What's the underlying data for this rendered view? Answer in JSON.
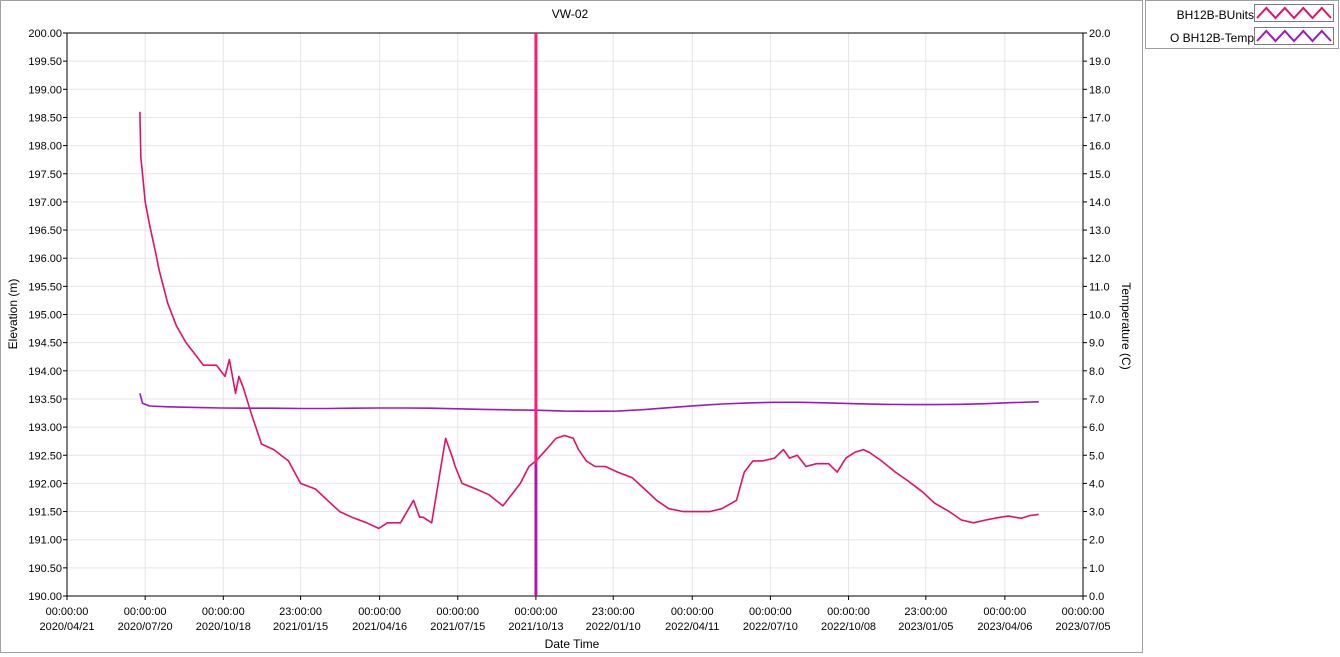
{
  "chart_data": {
    "type": "line",
    "title": "VW-02",
    "xlabel": "Date Time",
    "ylabel": "Elevation (m)",
    "y2label": "Temperature (C)",
    "xlim": [
      "2020-04-21",
      "2023-07-05"
    ],
    "ylim": [
      190.0,
      200.0
    ],
    "y2lim": [
      0.0,
      20.0
    ],
    "grid": true,
    "legend_position": "top-right, outside plot",
    "x_ticks": [
      {
        "date": "2020-04-21",
        "time": "00:00:00",
        "label": "2020/04/21"
      },
      {
        "date": "2020-07-20",
        "time": "00:00:00",
        "label": "2020/07/20"
      },
      {
        "date": "2020-10-18",
        "time": "00:00:00",
        "label": "2020/10/18"
      },
      {
        "date": "2021-01-15",
        "time": "23:00:00",
        "label": "2021/01/15"
      },
      {
        "date": "2021-04-16",
        "time": "00:00:00",
        "label": "2021/04/16"
      },
      {
        "date": "2021-07-15",
        "time": "00:00:00",
        "label": "2021/07/15"
      },
      {
        "date": "2021-10-13",
        "time": "00:00:00",
        "label": "2021/10/13"
      },
      {
        "date": "2022-01-10",
        "time": "23:00:00",
        "label": "2022/01/10"
      },
      {
        "date": "2022-04-11",
        "time": "00:00:00",
        "label": "2022/04/11"
      },
      {
        "date": "2022-07-10",
        "time": "00:00:00",
        "label": "2022/07/10"
      },
      {
        "date": "2022-10-08",
        "time": "00:00:00",
        "label": "2022/10/08"
      },
      {
        "date": "2023-01-05",
        "time": "23:00:00",
        "label": "2023/01/05"
      },
      {
        "date": "2023-04-06",
        "time": "00:00:00",
        "label": "2023/04/06"
      },
      {
        "date": "2023-07-05",
        "time": "00:00:00",
        "label": "2023/07/05"
      }
    ],
    "y_ticks": [
      "190.00",
      "190.50",
      "191.00",
      "191.50",
      "192.00",
      "192.50",
      "193.00",
      "193.50",
      "194.00",
      "194.50",
      "195.00",
      "195.50",
      "196.00",
      "196.50",
      "197.00",
      "197.50",
      "198.00",
      "198.50",
      "199.00",
      "199.50",
      "200.00"
    ],
    "y2_ticks": [
      "0.0",
      "1.0",
      "2.0",
      "3.0",
      "4.0",
      "5.0",
      "6.0",
      "7.0",
      "8.0",
      "9.0",
      "10.0",
      "11.0",
      "12.0",
      "13.0",
      "14.0",
      "15.0",
      "16.0",
      "17.0",
      "18.0",
      "19.0",
      "20.0"
    ],
    "cursor": {
      "x": "2021-10-13",
      "color": "#ff1a75"
    },
    "series": [
      {
        "name": "BH12B-BUnits",
        "legend_label": "BH12B-BUnits",
        "axis": "left",
        "color": "#e0116a",
        "x": [
          "2020-07-14",
          "2020-07-15",
          "2020-07-17",
          "2020-07-20",
          "2020-07-25",
          "2020-08-01",
          "2020-08-05",
          "2020-08-15",
          "2020-08-25",
          "2020-09-05",
          "2020-09-15",
          "2020-09-25",
          "2020-10-10",
          "2020-10-20",
          "2020-10-25",
          "2020-11-01",
          "2020-11-05",
          "2020-11-10",
          "2020-11-20",
          "2020-12-01",
          "2020-12-15",
          "2021-01-01",
          "2021-01-15",
          "2021-02-01",
          "2021-02-15",
          "2021-03-01",
          "2021-03-15",
          "2021-04-01",
          "2021-04-15",
          "2021-04-25",
          "2021-05-10",
          "2021-05-25",
          "2021-06-01",
          "2021-06-05",
          "2021-06-15",
          "2021-07-01",
          "2021-07-08",
          "2021-07-12",
          "2021-07-20",
          "2021-08-05",
          "2021-08-20",
          "2021-09-05",
          "2021-09-15",
          "2021-09-25",
          "2021-10-05",
          "2021-10-13",
          "2021-10-25",
          "2021-11-05",
          "2021-11-15",
          "2021-11-25",
          "2021-12-01",
          "2021-12-10",
          "2021-12-20",
          "2022-01-01",
          "2022-01-15",
          "2022-02-01",
          "2022-02-15",
          "2022-03-01",
          "2022-03-15",
          "2022-04-01",
          "2022-04-15",
          "2022-05-01",
          "2022-05-15",
          "2022-06-01",
          "2022-06-10",
          "2022-06-20",
          "2022-07-01",
          "2022-07-15",
          "2022-07-25",
          "2022-08-01",
          "2022-08-10",
          "2022-08-20",
          "2022-09-01",
          "2022-09-15",
          "2022-09-25",
          "2022-10-05",
          "2022-10-15",
          "2022-10-25",
          "2022-11-01",
          "2022-11-15",
          "2022-12-01",
          "2022-12-15",
          "2023-01-01",
          "2023-01-15",
          "2023-02-01",
          "2023-02-15",
          "2023-03-01",
          "2023-03-15",
          "2023-04-01",
          "2023-04-10",
          "2023-04-25",
          "2023-05-05",
          "2023-05-15"
        ],
        "values": [
          198.6,
          197.8,
          197.5,
          197.0,
          196.6,
          196.1,
          195.8,
          195.2,
          194.8,
          194.5,
          194.3,
          194.1,
          194.1,
          193.9,
          194.2,
          193.6,
          193.9,
          193.7,
          193.2,
          192.7,
          192.6,
          192.4,
          192.0,
          191.9,
          191.7,
          191.5,
          191.4,
          191.3,
          191.2,
          191.3,
          191.3,
          191.7,
          191.4,
          191.4,
          191.3,
          192.8,
          192.5,
          192.3,
          192.0,
          191.9,
          191.8,
          191.6,
          191.8,
          192.0,
          192.3,
          192.4,
          192.6,
          192.8,
          192.85,
          192.8,
          192.6,
          192.4,
          192.3,
          192.3,
          192.2,
          192.1,
          191.9,
          191.7,
          191.55,
          191.5,
          191.5,
          191.5,
          191.55,
          191.7,
          192.2,
          192.4,
          192.4,
          192.45,
          192.6,
          192.45,
          192.5,
          192.3,
          192.35,
          192.35,
          192.2,
          192.45,
          192.55,
          192.6,
          192.55,
          192.4,
          192.2,
          192.05,
          191.85,
          191.65,
          191.5,
          191.35,
          191.3,
          191.35,
          191.4,
          191.42,
          191.38,
          191.43,
          191.45
        ]
      },
      {
        "name": "BH12B-Temp",
        "legend_label": "O BH12B-Temp",
        "axis": "right",
        "color": "#9b19c2",
        "x": [
          "2020-07-14",
          "2020-07-17",
          "2020-07-25",
          "2020-08-15",
          "2020-09-15",
          "2020-10-15",
          "2020-11-15",
          "2020-12-15",
          "2021-01-15",
          "2021-02-15",
          "2021-03-15",
          "2021-04-15",
          "2021-05-15",
          "2021-06-15",
          "2021-07-15",
          "2021-08-15",
          "2021-09-15",
          "2021-10-13",
          "2021-11-15",
          "2021-12-15",
          "2022-01-15",
          "2022-02-15",
          "2022-03-15",
          "2022-04-15",
          "2022-05-15",
          "2022-06-15",
          "2022-07-15",
          "2022-08-15",
          "2022-09-15",
          "2022-10-15",
          "2022-11-15",
          "2022-12-15",
          "2023-01-15",
          "2023-02-15",
          "2023-03-15",
          "2023-04-15",
          "2023-05-15"
        ],
        "values": [
          7.2,
          6.85,
          6.75,
          6.72,
          6.7,
          6.68,
          6.67,
          6.67,
          6.66,
          6.66,
          6.67,
          6.68,
          6.68,
          6.67,
          6.65,
          6.63,
          6.61,
          6.6,
          6.57,
          6.56,
          6.57,
          6.62,
          6.69,
          6.76,
          6.82,
          6.86,
          6.88,
          6.88,
          6.86,
          6.83,
          6.81,
          6.8,
          6.8,
          6.81,
          6.83,
          6.87,
          6.9
        ]
      }
    ]
  }
}
